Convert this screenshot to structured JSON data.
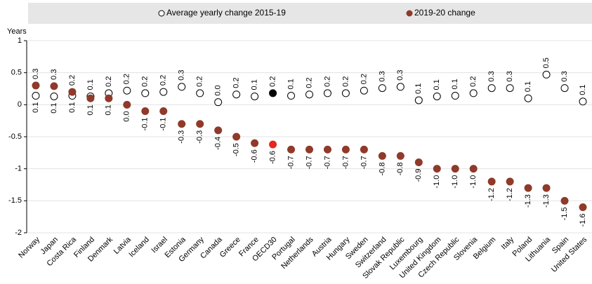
{
  "chart_data": {
    "type": "dot",
    "y_label": "Years",
    "categories": [
      "Norway",
      "Japan",
      "Costa Rica",
      "Finland",
      "Denmark",
      "Latvia",
      "Iceland",
      "Israel",
      "Estonia",
      "Germany",
      "Canada",
      "Greece",
      "France",
      "OECD30",
      "Portugal",
      "Netherlands",
      "Austria",
      "Hungary",
      "Sweden",
      "Switzerland",
      "Slovak Republic",
      "Luxembourg",
      "United Kingdom",
      "Czech Republic",
      "Slovenia",
      "Belgium",
      "Italy",
      "Poland",
      "Lithuania",
      "Spain",
      "United States"
    ],
    "highlight": "OECD30",
    "series": [
      {
        "name": "Average yearly change 2015-19",
        "marker": "open",
        "color": "#000000",
        "highlight_color": "#000000",
        "values": [
          0.14,
          0.13,
          0.14,
          0.13,
          0.18,
          0.22,
          0.18,
          0.2,
          0.28,
          0.18,
          0.04,
          0.16,
          0.13,
          0.18,
          0.14,
          0.16,
          0.18,
          0.18,
          0.22,
          0.26,
          0.28,
          0.07,
          0.13,
          0.14,
          0.18,
          0.26,
          0.26,
          0.1,
          0.47,
          0.26,
          0.05
        ],
        "value_labels": [
          "0.1",
          "0.1",
          "0.1",
          "0.1",
          "0.2",
          "0.2",
          "0.2",
          "0.2",
          "0.3",
          "0.2",
          "0.0",
          "0.2",
          "0.1",
          "0.2",
          "0.1",
          "0.2",
          "0.2",
          "0.2",
          "0.2",
          "0.3",
          "0.3",
          "0.1",
          "0.1",
          "0.1",
          "0.2",
          "0.3",
          "0.3",
          "0.1",
          "0.5",
          "0.3",
          "0.1"
        ]
      },
      {
        "name": "2019-20 change",
        "marker": "filled",
        "color": "#8f3a2a",
        "highlight_color": "#e8261f",
        "values": [
          0.3,
          0.29,
          0.2,
          0.1,
          0.1,
          0.0,
          -0.1,
          -0.1,
          -0.3,
          -0.3,
          -0.4,
          -0.5,
          -0.6,
          -0.62,
          -0.7,
          -0.7,
          -0.7,
          -0.7,
          -0.7,
          -0.8,
          -0.8,
          -0.9,
          -1.0,
          -1.0,
          -1.0,
          -1.2,
          -1.2,
          -1.3,
          -1.3,
          -1.5,
          -1.6
        ],
        "value_labels": [
          "0.3",
          "0.3",
          "0.2",
          "0.1",
          "0.1",
          "0.0",
          "-0.1",
          "-0.1",
          "-0.3",
          "-0.3",
          "-0.4",
          "-0.5",
          "-0.6",
          "-0.6",
          "-0.7",
          "-0.7",
          "-0.7",
          "-0.7",
          "-0.7",
          "-0.8",
          "-0.8",
          "-0.9",
          "-1.0",
          "-1.0",
          "-1.0",
          "-1.2",
          "-1.2",
          "-1.3",
          "-1.3",
          "-1.5",
          "-1.6"
        ]
      }
    ],
    "ylim": [
      -2,
      1
    ],
    "yticks": [
      1,
      0.5,
      0,
      -0.5,
      -1,
      -1.5,
      -2
    ],
    "grid": true
  }
}
